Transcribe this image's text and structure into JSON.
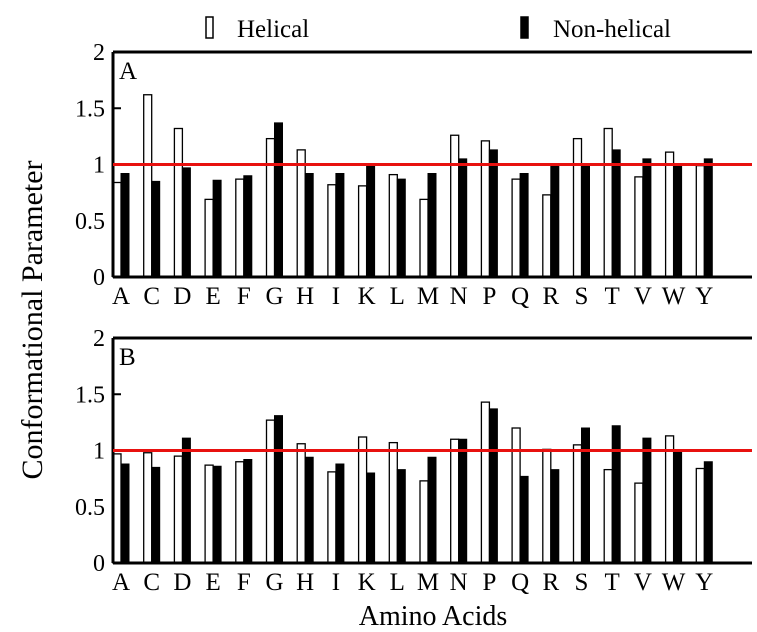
{
  "legend": {
    "items": [
      {
        "label": "Helical",
        "swatch": "hollow"
      },
      {
        "label": "Non-helical",
        "swatch": "filled"
      }
    ]
  },
  "ylabel": "Conformational Parameter",
  "xlabel": "Amino Acids",
  "reference_line": {
    "value": 1,
    "color": "#e8110f"
  },
  "colors": {
    "helical_fill": "#ffffff",
    "nonhelical_fill": "#000000",
    "outline": "#000000"
  },
  "chart_data": [
    {
      "type": "bar",
      "panel_label": "A",
      "categories": [
        "A",
        "C",
        "D",
        "E",
        "F",
        "G",
        "H",
        "I",
        "K",
        "L",
        "M",
        "N",
        "P",
        "Q",
        "R",
        "S",
        "T",
        "V",
        "W",
        "Y"
      ],
      "ylim": [
        0,
        2
      ],
      "yticks": [
        "0",
        "0.5",
        "1",
        "1.5",
        "2"
      ],
      "series": [
        {
          "name": "Helical",
          "values": [
            0.84,
            1.62,
            1.32,
            0.69,
            0.87,
            1.23,
            1.13,
            0.82,
            0.81,
            0.91,
            0.69,
            1.26,
            1.21,
            0.87,
            0.73,
            1.23,
            1.32,
            0.89,
            1.11,
            0.99
          ]
        },
        {
          "name": "Non-helical",
          "values": [
            0.92,
            0.85,
            0.97,
            0.86,
            0.9,
            1.37,
            0.92,
            0.92,
            0.99,
            0.87,
            0.92,
            1.05,
            1.13,
            0.92,
            0.99,
            0.99,
            1.13,
            1.05,
            0.99,
            1.05
          ]
        }
      ]
    },
    {
      "type": "bar",
      "panel_label": "B",
      "categories": [
        "A",
        "C",
        "D",
        "E",
        "F",
        "G",
        "H",
        "I",
        "K",
        "L",
        "M",
        "N",
        "P",
        "Q",
        "R",
        "S",
        "T",
        "V",
        "W",
        "Y"
      ],
      "ylim": [
        0,
        2
      ],
      "yticks": [
        "0",
        "0.5",
        "1",
        "1.5",
        "2"
      ],
      "series": [
        {
          "name": "Helical",
          "values": [
            0.97,
            0.98,
            0.95,
            0.87,
            0.9,
            1.27,
            1.06,
            0.81,
            1.12,
            1.07,
            0.73,
            1.1,
            1.43,
            1.2,
            1.01,
            1.05,
            0.83,
            0.71,
            1.13,
            0.84
          ]
        },
        {
          "name": "Non-helical",
          "values": [
            0.88,
            0.85,
            1.11,
            0.86,
            0.92,
            1.31,
            0.94,
            0.88,
            0.8,
            0.83,
            0.94,
            1.1,
            1.37,
            0.77,
            0.83,
            1.2,
            1.22,
            1.11,
            1.0,
            0.9
          ]
        }
      ]
    }
  ]
}
